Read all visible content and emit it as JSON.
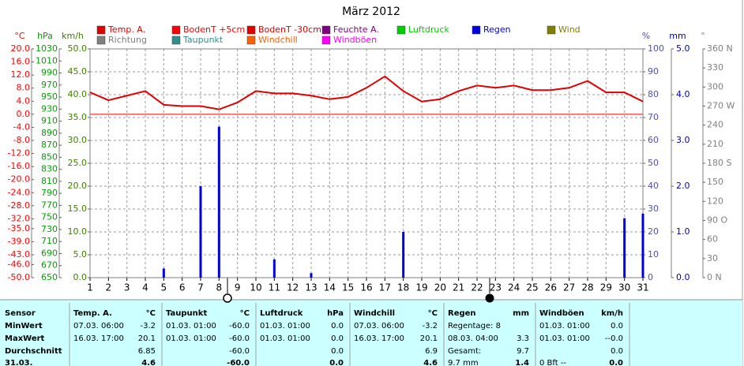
{
  "chart_data": {
    "type": "line",
    "title": "März 2012",
    "x": [
      1,
      2,
      3,
      4,
      5,
      6,
      7,
      8,
      9,
      10,
      11,
      12,
      13,
      14,
      15,
      16,
      17,
      18,
      19,
      20,
      21,
      22,
      23,
      24,
      25,
      26,
      27,
      28,
      29,
      30,
      31
    ],
    "xlim": [
      1,
      31
    ],
    "xticks": [
      1,
      2,
      3,
      4,
      5,
      6,
      7,
      8,
      9,
      10,
      11,
      12,
      13,
      14,
      15,
      16,
      17,
      18,
      19,
      20,
      21,
      22,
      23,
      24,
      25,
      26,
      27,
      28,
      29,
      30,
      31
    ],
    "axes": [
      {
        "label": "°C",
        "color": "#ff0000",
        "lim": [
          -50,
          20
        ],
        "reference_line": 0,
        "ticks": [
          {
            "value": 20,
            "label": "20.0"
          },
          {
            "value": 16,
            "label": "16.0"
          },
          {
            "value": 12,
            "label": "12.0"
          },
          {
            "value": 8,
            "label": "8.0"
          },
          {
            "value": 4,
            "label": "4.0"
          },
          {
            "value": 0,
            "label": "0.0"
          },
          {
            "value": -4,
            "label": "-4.0"
          },
          {
            "value": -8,
            "label": "-8.0"
          },
          {
            "value": -12,
            "label": "-12.0"
          },
          {
            "value": -16,
            "label": "-16.0"
          },
          {
            "value": -20,
            "label": "-20.0"
          },
          {
            "value": -24,
            "label": "-24.0"
          },
          {
            "value": -28,
            "label": "-28.0"
          },
          {
            "value": -32,
            "label": "-32.0"
          },
          {
            "value": -35,
            "label": "-35.0"
          },
          {
            "value": -39,
            "label": "-39.0"
          },
          {
            "value": -43,
            "label": "-43.0"
          },
          {
            "value": -46,
            "label": "-46.0"
          },
          {
            "value": -50,
            "label": "-50.0"
          }
        ]
      },
      {
        "label": "hPa",
        "color": "#00a000",
        "lim": [
          650,
          1030
        ],
        "ticks": [
          1030,
          1010,
          990,
          970,
          950,
          930,
          910,
          890,
          870,
          850,
          830,
          810,
          790,
          770,
          750,
          730,
          710,
          690,
          670,
          650
        ]
      },
      {
        "label": "km/h",
        "color": "#408000",
        "lim": [
          0,
          50
        ],
        "grid": true,
        "ticks": [
          {
            "value": 50,
            "label": "50.0"
          },
          {
            "value": 45,
            "label": "45.0"
          },
          {
            "value": 40,
            "label": "40.0"
          },
          {
            "value": 35,
            "label": "35.0"
          },
          {
            "value": 30,
            "label": "30.0"
          },
          {
            "value": 25,
            "label": "25.0"
          },
          {
            "value": 20,
            "label": "20.0"
          },
          {
            "value": 15,
            "label": "15.0"
          },
          {
            "value": 10,
            "label": "10.0"
          },
          {
            "value": 5,
            "label": "5.0"
          },
          {
            "value": 0,
            "label": "0.0"
          }
        ]
      },
      {
        "label": "%",
        "color": "#5050b0",
        "lim": [
          0,
          100
        ],
        "ticks": [
          100,
          90,
          80,
          70,
          60,
          50,
          40,
          30,
          20,
          10,
          0
        ]
      },
      {
        "label": "mm",
        "color": "#0000c0",
        "lim": [
          0,
          5
        ],
        "ticks": [
          {
            "value": 5,
            "label": "5.0"
          },
          {
            "value": 4,
            "label": "4.0"
          },
          {
            "value": 3,
            "label": "3.0"
          },
          {
            "value": 2,
            "label": "2.0"
          },
          {
            "value": 1,
            "label": "1.0"
          },
          {
            "value": 0,
            "label": "0.0"
          }
        ]
      },
      {
        "label": "°",
        "color": "#808080",
        "lim": [
          0,
          360
        ],
        "ticks": [
          {
            "value": 360,
            "label": "360 N"
          },
          330,
          300,
          {
            "value": 270,
            "label": "270 W"
          },
          240,
          210,
          {
            "value": 180,
            "label": "180 S"
          },
          150,
          120,
          {
            "value": 90,
            "label": "90 O"
          },
          60,
          30,
          {
            "value": 0,
            "label": "0 N"
          }
        ]
      }
    ],
    "series": [
      {
        "name": "Temp. A.",
        "color": "#e00000",
        "axis": 0,
        "kind": "line",
        "values": [
          6.7,
          4.3,
          5.7,
          7.1,
          2.9,
          2.5,
          2.5,
          1.5,
          3.6,
          7.1,
          6.4,
          6.4,
          5.7,
          4.6,
          5.3,
          8.1,
          11.6,
          7.1,
          3.9,
          4.6,
          7.1,
          8.8,
          8.1,
          8.8,
          7.4,
          7.4,
          8.1,
          10.2,
          6.7,
          6.7,
          3.9
        ]
      },
      {
        "name": "BodenT +5cm",
        "color": "#ff0000"
      },
      {
        "name": "BodenT -30cm",
        "color": "#e00000"
      },
      {
        "name": "Feuchte A.",
        "color": "#800080"
      },
      {
        "name": "Luftdruck",
        "color": "#00d000"
      },
      {
        "name": "Regen",
        "color": "#0000e0",
        "axis": 4,
        "kind": "bar",
        "values": [
          0,
          0,
          0,
          0,
          0.2,
          0,
          2.0,
          3.3,
          0,
          0,
          0.4,
          0,
          0.1,
          0,
          0,
          0,
          0,
          1.0,
          0,
          0,
          0,
          0,
          0,
          0,
          0,
          0,
          0,
          0,
          0,
          1.3,
          1.4
        ]
      },
      {
        "name": "Wind",
        "color": "#808000"
      },
      {
        "name": "Richtung",
        "color": "#808080"
      },
      {
        "name": "Taupunkt",
        "color": "#2f8f8f"
      },
      {
        "name": "Windchill",
        "color": "#ff6000"
      },
      {
        "name": "Windböen",
        "color": "#ff00ff"
      }
    ]
  },
  "table": {
    "header": "Sensor",
    "columns": [
      {
        "title": "Temp. A.",
        "unit": "°C"
      },
      {
        "title": "Taupunkt",
        "unit": "°C"
      },
      {
        "title": "Luftdruck",
        "unit": "hPa"
      },
      {
        "title": "Windchill",
        "unit": "°C"
      },
      {
        "title": "Regen",
        "unit": "mm"
      },
      {
        "title": "Windböen",
        "unit": "km/h"
      }
    ],
    "rows": [
      {
        "label": "MinWert",
        "cells": [
          {
            "left": "07.03. 06:00",
            "right": "-3.2"
          },
          {
            "left": "01.03. 01:00",
            "right": "-60.0"
          },
          {
            "left": "01.03. 01:00",
            "right": "0.0"
          },
          {
            "left": "07.03. 06:00",
            "right": "-3.2"
          },
          {
            "left": "Regentage: 8"
          },
          {
            "left": "01.03. 01:00",
            "right": "0.0"
          }
        ]
      },
      {
        "label": "MaxWert",
        "cells": [
          {
            "left": "16.03. 17:00",
            "right": "20.1"
          },
          {
            "left": "01.03. 01:00",
            "right": "-60.0"
          },
          {
            "left": "01.03. 01:00",
            "right": "0.0"
          },
          {
            "left": "16.03. 17:00",
            "right": "20.1"
          },
          {
            "left": "08.03. 04:00",
            "right": "3.3"
          },
          {
            "left": "01.03. 01:00",
            "right": "--0.0"
          }
        ]
      },
      {
        "label": "Durchschnitt",
        "cells": [
          {
            "right": "6.85"
          },
          {
            "right": "-60.0"
          },
          {
            "right": "0.0"
          },
          {
            "right": "6.9"
          },
          {
            "left": "Gesamt:",
            "right": "9.7"
          },
          {
            "right": "0.0"
          }
        ]
      },
      {
        "label": "31.03.",
        "bold": true,
        "cells": [
          {
            "right": "4.6"
          },
          {
            "right": "-60.0"
          },
          {
            "right": "0.0"
          },
          {
            "right": "4.6"
          },
          {
            "left": "9.7 mm",
            "right": "1.4"
          },
          {
            "left": "0 Bft --",
            "right": "0.0"
          }
        ]
      }
    ]
  }
}
